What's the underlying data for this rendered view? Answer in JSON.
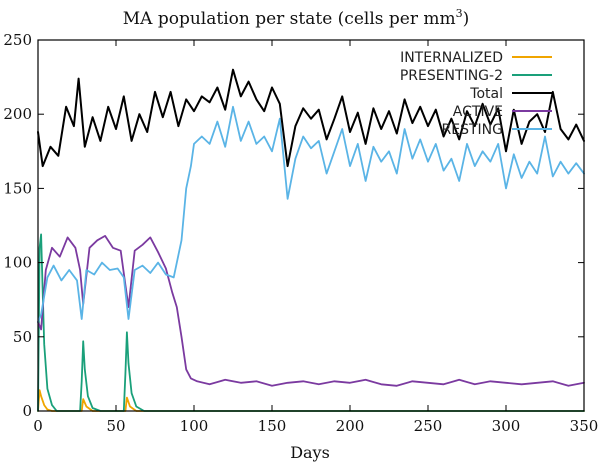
{
  "chart_data": {
    "type": "line",
    "title": "MA population per state (cells per mm",
    "title_superscript": "3",
    "title_suffix": ")",
    "xlabel": "Days",
    "ylabel": "",
    "xlim": [
      0,
      350
    ],
    "ylim": [
      0,
      250
    ],
    "xticks": [
      0,
      50,
      100,
      150,
      200,
      250,
      300,
      350
    ],
    "yticks": [
      0,
      50,
      100,
      150,
      200,
      250
    ],
    "grid": false,
    "legend_position": "top-right",
    "series": [
      {
        "name": "INTERNALIZED",
        "color": "#f0a500",
        "x": [
          0,
          1,
          2,
          4,
          6,
          9,
          28,
          29,
          31,
          35,
          56,
          57,
          59,
          63,
          70,
          350
        ],
        "values": [
          0,
          14,
          10,
          4,
          1,
          0,
          0,
          8,
          3,
          0,
          0,
          9,
          3,
          0,
          0,
          0
        ]
      },
      {
        "name": "PRESENTING-2",
        "color": "#1aa07a",
        "x": [
          0,
          1,
          2,
          3,
          4,
          6,
          9,
          12,
          27,
          28,
          29,
          30,
          32,
          35,
          40,
          55,
          56,
          57,
          58,
          60,
          63,
          68,
          350
        ],
        "values": [
          0,
          110,
          119,
          80,
          45,
          15,
          4,
          0,
          0,
          20,
          47,
          28,
          10,
          2,
          0,
          0,
          25,
          53,
          32,
          12,
          3,
          0,
          0
        ]
      },
      {
        "name": "Total",
        "color": "#000000",
        "x": [
          0,
          3,
          8,
          13,
          18,
          23,
          26,
          30,
          35,
          40,
          45,
          50,
          55,
          60,
          65,
          70,
          75,
          80,
          85,
          90,
          95,
          100,
          105,
          110,
          115,
          120,
          125,
          130,
          135,
          140,
          145,
          150,
          155,
          160,
          165,
          170,
          175,
          180,
          185,
          190,
          195,
          200,
          205,
          210,
          215,
          220,
          225,
          230,
          235,
          240,
          245,
          250,
          255,
          260,
          265,
          270,
          275,
          280,
          285,
          290,
          295,
          300,
          305,
          310,
          315,
          320,
          325,
          330,
          335,
          340,
          345,
          350
        ],
        "values": [
          188,
          165,
          178,
          172,
          205,
          192,
          224,
          178,
          198,
          182,
          205,
          190,
          212,
          182,
          200,
          188,
          215,
          198,
          215,
          192,
          210,
          202,
          212,
          208,
          218,
          203,
          230,
          212,
          222,
          210,
          202,
          218,
          207,
          165,
          192,
          204,
          197,
          203,
          183,
          197,
          212,
          188,
          201,
          180,
          204,
          190,
          202,
          187,
          210,
          194,
          205,
          192,
          203,
          185,
          197,
          183,
          202,
          192,
          207,
          193,
          204,
          175,
          203,
          180,
          195,
          200,
          188,
          215,
          190,
          183,
          193,
          182
        ]
      },
      {
        "name": "ACTIVE",
        "color": "#7b3aa0",
        "x": [
          0,
          2,
          5,
          9,
          14,
          19,
          24,
          27,
          29,
          33,
          38,
          43,
          48,
          53,
          56,
          58,
          62,
          67,
          72,
          77,
          82,
          86,
          89,
          92,
          95,
          98,
          102,
          110,
          120,
          130,
          140,
          150,
          160,
          170,
          180,
          190,
          200,
          210,
          220,
          230,
          240,
          250,
          260,
          270,
          280,
          290,
          300,
          310,
          320,
          330,
          340,
          350
        ],
        "values": [
          60,
          55,
          95,
          110,
          104,
          117,
          110,
          95,
          72,
          110,
          115,
          118,
          110,
          108,
          85,
          70,
          108,
          112,
          117,
          107,
          96,
          80,
          70,
          50,
          28,
          22,
          20,
          18,
          21,
          19,
          20,
          17,
          19,
          20,
          18,
          20,
          19,
          21,
          18,
          17,
          20,
          19,
          18,
          21,
          18,
          20,
          19,
          18,
          19,
          20,
          17,
          19
        ]
      },
      {
        "name": "RESTING",
        "color": "#5ab4e6",
        "x": [
          0,
          2,
          6,
          10,
          15,
          20,
          25,
          28,
          31,
          36,
          41,
          46,
          51,
          55,
          58,
          62,
          67,
          72,
          77,
          82,
          87,
          92,
          95,
          98,
          100,
          105,
          110,
          115,
          120,
          125,
          130,
          135,
          140,
          145,
          150,
          155,
          160,
          165,
          170,
          175,
          180,
          185,
          190,
          195,
          200,
          205,
          210,
          215,
          220,
          225,
          230,
          235,
          240,
          245,
          250,
          255,
          260,
          265,
          270,
          275,
          280,
          285,
          290,
          295,
          300,
          305,
          310,
          315,
          320,
          325,
          330,
          335,
          340,
          345,
          350
        ],
        "values": [
          60,
          65,
          90,
          98,
          88,
          95,
          88,
          62,
          95,
          92,
          100,
          95,
          96,
          90,
          62,
          95,
          98,
          93,
          100,
          92,
          90,
          115,
          150,
          165,
          180,
          185,
          180,
          195,
          178,
          205,
          182,
          195,
          180,
          185,
          175,
          197,
          143,
          170,
          185,
          177,
          182,
          160,
          175,
          190,
          165,
          180,
          155,
          178,
          168,
          175,
          160,
          190,
          170,
          183,
          168,
          180,
          162,
          170,
          155,
          180,
          165,
          175,
          168,
          180,
          150,
          173,
          157,
          168,
          160,
          185,
          158,
          168,
          160,
          167,
          160
        ]
      }
    ]
  }
}
